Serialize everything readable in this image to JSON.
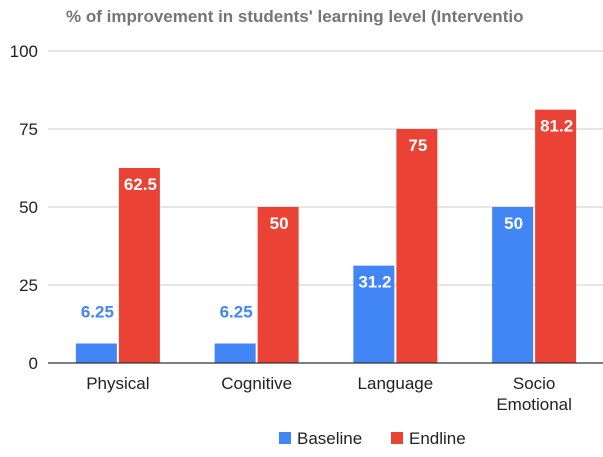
{
  "chart_data": {
    "type": "bar",
    "title": "% of improvement in students' learning level (Interventio",
    "xlabel": "",
    "ylabel": "",
    "ylim": [
      0,
      100
    ],
    "yticks": [
      "0",
      "25",
      "50",
      "75",
      "100"
    ],
    "categories": [
      [
        "Physical"
      ],
      [
        "Cognitive"
      ],
      [
        "Language"
      ],
      [
        "Socio",
        "Emotional"
      ]
    ],
    "series": [
      {
        "name": "Baseline",
        "color": "#4285f4",
        "values": [
          6.25,
          6.25,
          31.2,
          50
        ],
        "labels": [
          "6.25",
          "6.25",
          "31.2",
          "50"
        ]
      },
      {
        "name": "Endline",
        "color": "#ea4335",
        "values": [
          62.5,
          50,
          75,
          81.2
        ],
        "labels": [
          "62.5",
          "50",
          "75",
          "81.2"
        ]
      }
    ],
    "grid": true,
    "legend": "bottom",
    "axis_color": "#333333",
    "grid_color": "#cccccc"
  }
}
